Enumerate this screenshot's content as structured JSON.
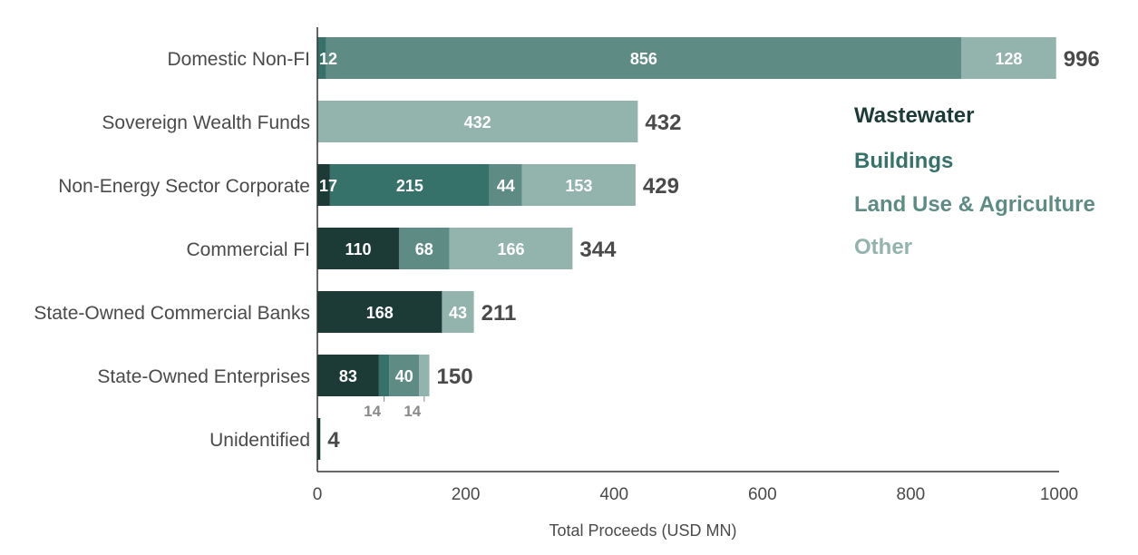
{
  "chart_data": {
    "type": "bar",
    "orientation": "horizontal",
    "stacked": true,
    "xlabel": "Total Proceeds (USD MN)",
    "xlim": [
      0,
      1000
    ],
    "xticks": [
      "0",
      "200",
      "400",
      "600",
      "800",
      "1000"
    ],
    "grid": false,
    "legend_position": "right",
    "categories": [
      "Domestic Non-FI",
      "Sovereign Wealth Funds",
      "Non-Energy Sector Corporate",
      "Commercial FI",
      "State-Owned Commercial Banks",
      "State-Owned Enterprises",
      "Unidentified"
    ],
    "series": [
      {
        "name": "Wastewater",
        "color": "#1c3b37",
        "values": [
          0,
          0,
          17,
          110,
          168,
          83,
          4
        ]
      },
      {
        "name": "Buildings",
        "color": "#36726a",
        "values": [
          12,
          0,
          215,
          0,
          0,
          14,
          0
        ]
      },
      {
        "name": "Land Use & Agriculture",
        "color": "#5e8c85",
        "values": [
          856,
          0,
          44,
          68,
          0,
          40,
          0
        ]
      },
      {
        "name": "Other",
        "color": "#93b3ad",
        "values": [
          128,
          432,
          153,
          166,
          43,
          14,
          0
        ]
      }
    ],
    "totals": [
      "996",
      "432",
      "429",
      "344",
      "211",
      "150",
      "4"
    ],
    "segment_labels": [
      [
        null,
        "12",
        "856",
        "128"
      ],
      [
        null,
        null,
        null,
        "432"
      ],
      [
        "17",
        "215",
        "44",
        "153"
      ],
      [
        "110",
        null,
        "68",
        "166"
      ],
      [
        "168",
        null,
        null,
        "43"
      ],
      [
        "83",
        null,
        "40",
        null
      ],
      [
        null,
        null,
        null,
        null
      ]
    ],
    "below_labels": [
      {
        "category_index": 5,
        "series_index": 1,
        "text": "14"
      },
      {
        "category_index": 5,
        "series_index": 3,
        "text": "14"
      }
    ]
  }
}
